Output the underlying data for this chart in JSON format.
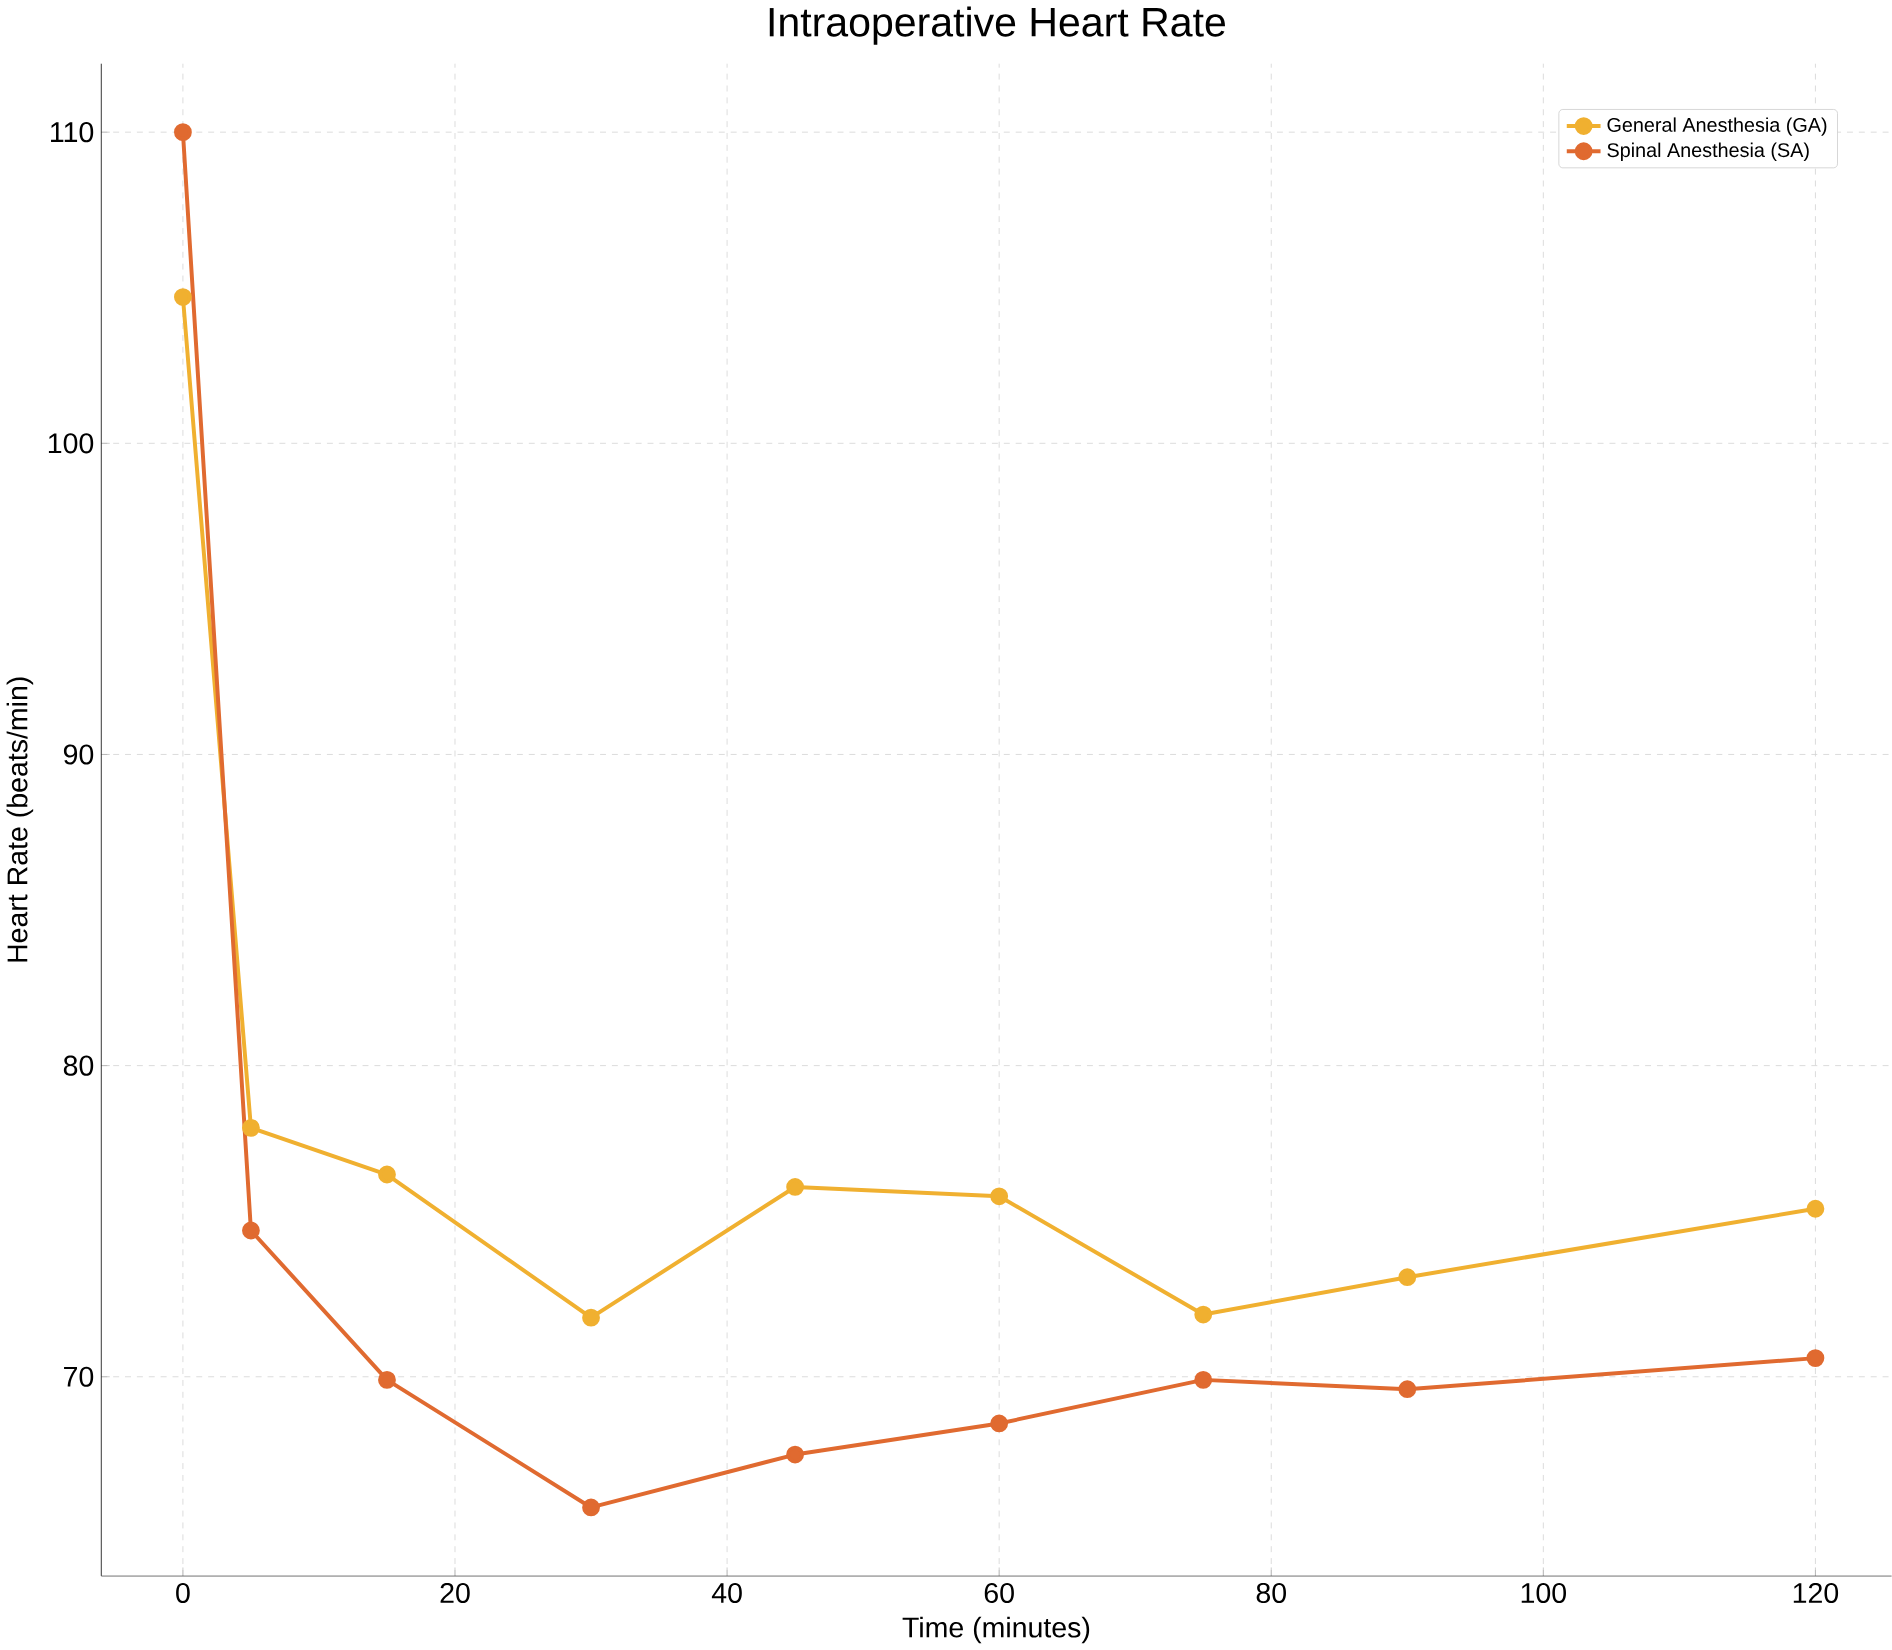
{
  "chart_data": {
    "type": "line",
    "title": "Intraoperative Heart Rate",
    "xlabel": "Time (minutes)",
    "ylabel": "Heart Rate (beats/min)",
    "x": [
      0,
      5,
      15,
      30,
      45,
      60,
      75,
      90,
      120
    ],
    "series": [
      {
        "name": "General Anesthesia (GA)",
        "color": "#f0b030",
        "values": [
          104.7,
          78.0,
          76.5,
          71.9,
          76.1,
          75.8,
          72.0,
          73.2,
          75.4
        ]
      },
      {
        "name": "Spinal Anesthesia (SA)",
        "color": "#e06a30",
        "values": [
          110.0,
          74.7,
          69.9,
          65.8,
          67.5,
          68.5,
          69.9,
          69.6,
          70.6
        ]
      }
    ],
    "xlim": [
      -6,
      125.6
    ],
    "ylim": [
      63.6,
      112.2
    ],
    "xticks": [
      0,
      20,
      40,
      60,
      80,
      100,
      120
    ],
    "yticks": [
      70,
      80,
      90,
      100,
      110
    ],
    "grid": true,
    "legend": "top right",
    "marker": "circle",
    "line_style": "solid"
  }
}
